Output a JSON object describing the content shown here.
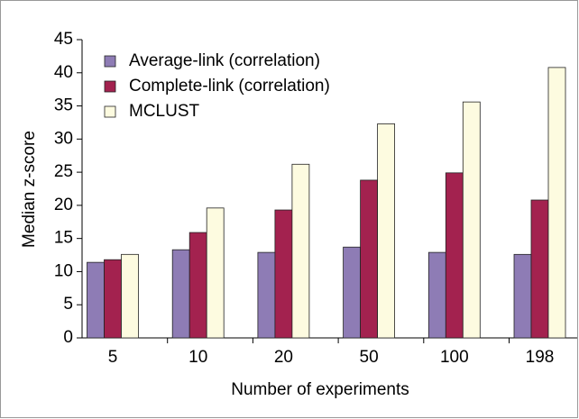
{
  "chart_data": {
    "type": "bar",
    "x_label": "Number of experiments",
    "y_label": "Median z-score",
    "categories": [
      "5",
      "10",
      "20",
      "50",
      "100",
      "198"
    ],
    "series": [
      {
        "name": "Average-link (correlation)",
        "color": "#8e7cb5",
        "values": [
          11.4,
          13.3,
          12.9,
          13.7,
          12.9,
          12.6
        ]
      },
      {
        "name": "Complete-link (correlation)",
        "color": "#a3224f",
        "values": [
          11.8,
          15.9,
          19.3,
          23.8,
          24.9,
          20.8
        ]
      },
      {
        "name": "MCLUST",
        "color": "#fdfbe0",
        "values": [
          12.6,
          19.6,
          26.2,
          32.3,
          35.6,
          40.8
        ]
      }
    ],
    "ylim": [
      0,
      45
    ],
    "yticks": [
      0,
      5,
      10,
      15,
      20,
      25,
      30,
      35,
      40,
      45
    ],
    "legend": "top-left"
  }
}
